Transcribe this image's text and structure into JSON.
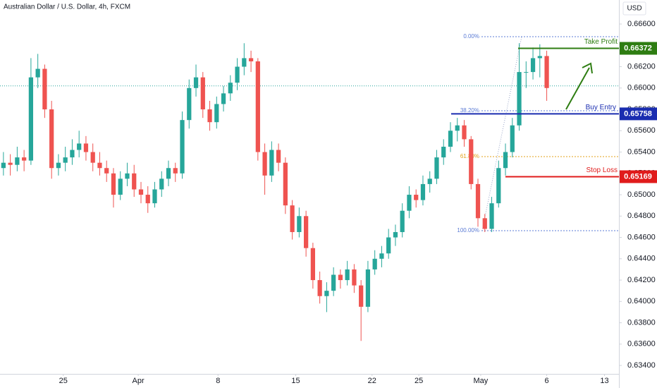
{
  "chart_data": {
    "type": "candlestick",
    "title": "Australian Dollar / U.S. Dollar, 4h, FXCM",
    "currency": "USD",
    "up_color": "#26a69a",
    "down_color": "#ef5350",
    "ylim": [
      0.63321,
      0.66825
    ],
    "yticks": [
      {
        "value": 0.634,
        "label": "0.63400"
      },
      {
        "value": 0.636,
        "label": "0.63600"
      },
      {
        "value": 0.638,
        "label": "0.63800"
      },
      {
        "value": 0.64,
        "label": "0.64000"
      },
      {
        "value": 0.642,
        "label": "0.64200"
      },
      {
        "value": 0.644,
        "label": "0.64400"
      },
      {
        "value": 0.646,
        "label": "0.64600"
      },
      {
        "value": 0.648,
        "label": "0.64800"
      },
      {
        "value": 0.65,
        "label": "0.65000"
      },
      {
        "value": 0.652,
        "label": "0.65200"
      },
      {
        "value": 0.654,
        "label": "0.65400"
      },
      {
        "value": 0.656,
        "label": "0.65600"
      },
      {
        "value": 0.658,
        "label": "0.65800"
      },
      {
        "value": 0.66,
        "label": "0.66000"
      },
      {
        "value": 0.662,
        "label": "0.66200"
      },
      {
        "value": 0.664,
        "label": "0.66400"
      },
      {
        "value": 0.666,
        "label": "0.66600"
      }
    ],
    "xlim": [
      -0.5,
      89.5
    ],
    "xticks": [
      {
        "value": 8.7,
        "label": "25"
      },
      {
        "value": 19.6,
        "label": "Apr"
      },
      {
        "value": 31.2,
        "label": "8"
      },
      {
        "value": 42.5,
        "label": "15"
      },
      {
        "value": 53.6,
        "label": "22"
      },
      {
        "value": 60.4,
        "label": "25"
      },
      {
        "value": 69.4,
        "label": "May"
      },
      {
        "value": 79,
        "label": "6"
      },
      {
        "value": 87.4,
        "label": "13"
      }
    ],
    "open": [
      0.6525,
      0.653,
      0.6528,
      0.6535,
      0.6532,
      0.661,
      0.6618,
      0.658,
      0.6525,
      0.653,
      0.6535,
      0.6542,
      0.6548,
      0.654,
      0.653,
      0.6525,
      0.652,
      0.65,
      0.6515,
      0.652,
      0.6505,
      0.65,
      0.6492,
      0.6505,
      0.6515,
      0.6525,
      0.652,
      0.657,
      0.66,
      0.661,
      0.658,
      0.6568,
      0.6585,
      0.6595,
      0.6605,
      0.662,
      0.6628,
      0.6625,
      0.654,
      0.6518,
      0.6542,
      0.653,
      0.649,
      0.6465,
      0.648,
      0.645,
      0.642,
      0.6405,
      0.641,
      0.6425,
      0.642,
      0.643,
      0.6415,
      0.6395,
      0.643,
      0.644,
      0.6445,
      0.646,
      0.6465,
      0.6485,
      0.65,
      0.6495,
      0.651,
      0.6515,
      0.6535,
      0.6545,
      0.656,
      0.6565,
      0.6552,
      0.651,
      0.6478,
      0.6468,
      0.6492,
      0.6525,
      0.654,
      0.6565,
      0.6615,
      0.6615,
      0.6628,
      0.663
    ],
    "high": [
      0.654,
      0.6538,
      0.6545,
      0.6542,
      0.6628,
      0.6632,
      0.6622,
      0.6588,
      0.6538,
      0.6545,
      0.6552,
      0.656,
      0.6555,
      0.6548,
      0.654,
      0.6532,
      0.6525,
      0.6522,
      0.653,
      0.6528,
      0.6512,
      0.6508,
      0.6512,
      0.6522,
      0.6532,
      0.653,
      0.6578,
      0.6608,
      0.6622,
      0.6615,
      0.6588,
      0.6592,
      0.6602,
      0.6612,
      0.6628,
      0.6642,
      0.6635,
      0.6628,
      0.6548,
      0.655,
      0.6548,
      0.6535,
      0.6495,
      0.6488,
      0.6485,
      0.6455,
      0.6428,
      0.6418,
      0.6432,
      0.643,
      0.6438,
      0.6435,
      0.642,
      0.6438,
      0.6448,
      0.6452,
      0.6468,
      0.6472,
      0.6492,
      0.6508,
      0.6505,
      0.6518,
      0.6522,
      0.6542,
      0.6552,
      0.6568,
      0.6572,
      0.657,
      0.6555,
      0.6515,
      0.6482,
      0.6498,
      0.6532,
      0.6548,
      0.6572,
      0.6642,
      0.6625,
      0.6638,
      0.6641,
      0.6635
    ],
    "low": [
      0.6518,
      0.6518,
      0.6522,
      0.6522,
      0.6528,
      0.66,
      0.6572,
      0.6515,
      0.6518,
      0.6522,
      0.6528,
      0.6535,
      0.6532,
      0.6522,
      0.6518,
      0.6512,
      0.6488,
      0.6495,
      0.6508,
      0.6498,
      0.6492,
      0.6483,
      0.6488,
      0.6498,
      0.6508,
      0.6512,
      0.6515,
      0.6562,
      0.6592,
      0.6572,
      0.656,
      0.6562,
      0.6578,
      0.6588,
      0.6598,
      0.6612,
      0.6615,
      0.6532,
      0.65,
      0.6512,
      0.6522,
      0.6482,
      0.6458,
      0.646,
      0.6442,
      0.6412,
      0.6398,
      0.639,
      0.6405,
      0.6412,
      0.6415,
      0.6408,
      0.6363,
      0.639,
      0.6425,
      0.6432,
      0.644,
      0.6452,
      0.646,
      0.6478,
      0.6488,
      0.649,
      0.6502,
      0.651,
      0.6528,
      0.654,
      0.655,
      0.6545,
      0.6505,
      0.647,
      0.6465,
      0.6465,
      0.6488,
      0.6518,
      0.6535,
      0.656,
      0.66,
      0.6608,
      0.661,
      0.6588
    ],
    "close": [
      0.653,
      0.6528,
      0.6535,
      0.6532,
      0.661,
      0.6618,
      0.658,
      0.6525,
      0.653,
      0.6535,
      0.6542,
      0.6548,
      0.654,
      0.653,
      0.6525,
      0.652,
      0.65,
      0.6515,
      0.652,
      0.6505,
      0.65,
      0.6492,
      0.6505,
      0.6515,
      0.6525,
      0.652,
      0.657,
      0.66,
      0.661,
      0.658,
      0.6568,
      0.6585,
      0.6595,
      0.6605,
      0.662,
      0.6628,
      0.6625,
      0.654,
      0.6518,
      0.6542,
      0.653,
      0.649,
      0.6465,
      0.648,
      0.645,
      0.642,
      0.6405,
      0.641,
      0.6425,
      0.642,
      0.643,
      0.6415,
      0.6395,
      0.643,
      0.644,
      0.6445,
      0.646,
      0.6465,
      0.6485,
      0.65,
      0.6495,
      0.651,
      0.6515,
      0.6535,
      0.6545,
      0.656,
      0.6565,
      0.6552,
      0.651,
      0.6478,
      0.6468,
      0.6492,
      0.6525,
      0.654,
      0.6565,
      0.6615,
      0.6615,
      0.6628,
      0.663,
      0.66
    ],
    "last_price": 0.6602,
    "fib_levels": [
      {
        "value": 0.66481,
        "label": "0.00%"
      },
      {
        "value": 0.65787,
        "label": "38.20%"
      },
      {
        "value": 0.65357,
        "label": "61.80%"
      },
      {
        "value": 0.64663,
        "label": "100.00%"
      }
    ],
    "levels": [
      {
        "name": "Take Profit",
        "value": 0.66372,
        "color": "#2e7d12"
      },
      {
        "name": "Buy Entry",
        "value": 0.65758,
        "color": "#1a2db0"
      },
      {
        "name": "Stop Loss",
        "value": 0.65169,
        "color": "#e01b1b"
      }
    ]
  }
}
